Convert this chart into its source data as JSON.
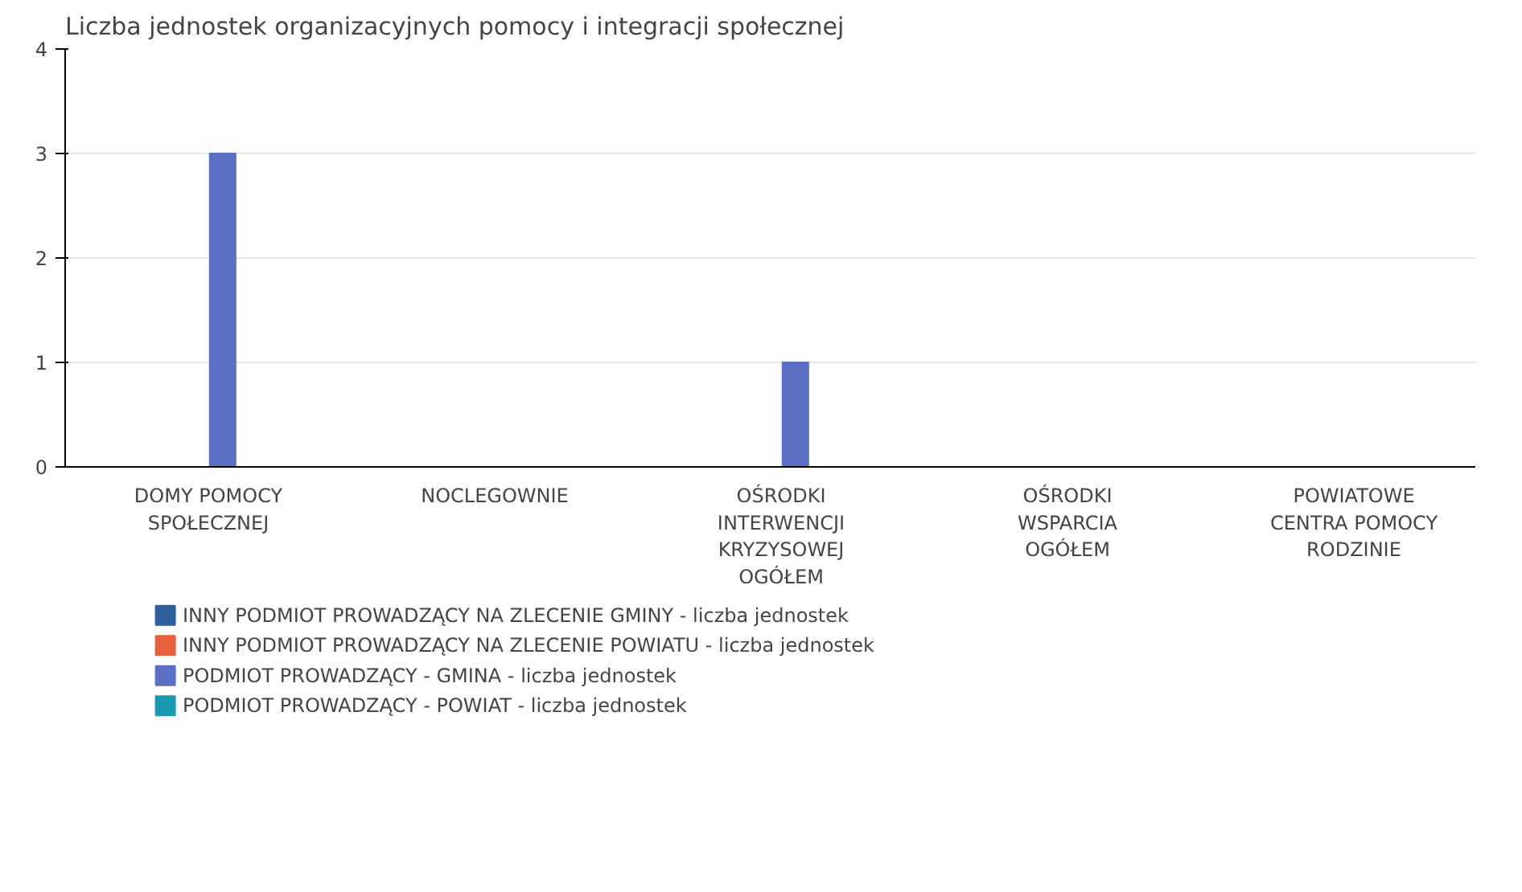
{
  "chart_data": {
    "type": "bar",
    "title": "Liczba jednostek organizacyjnych pomocy i integracji społecznej",
    "categories": [
      "DOMY POMOCY SPOŁECZNEJ",
      "NOCLEGOWNIE",
      "OŚRODKI INTERWENCJI KRYZYSOWEJ OGÓŁEM",
      "OŚRODKI WSPARCIA OGÓŁEM",
      "POWIATOWE CENTRA POMOCY RODZINIE"
    ],
    "series": [
      {
        "name": "INNY PODMIOT PROWADZĄCY NA ZLECENIE GMINY - liczba jednostek",
        "color": "#2c5f9e",
        "values": [
          0,
          0,
          0,
          0,
          0
        ]
      },
      {
        "name": "INNY PODMIOT PROWADZĄCY NA ZLECENIE POWIATU - liczba jednostek",
        "color": "#e8603c",
        "values": [
          0,
          0,
          0,
          0,
          0
        ]
      },
      {
        "name": "PODMIOT PROWADZĄCY - GMINA - liczba jednostek",
        "color": "#5b6fc4",
        "values": [
          3,
          0,
          1,
          0,
          0
        ]
      },
      {
        "name": "PODMIOT PROWADZĄCY - POWIAT - liczba jednostek",
        "color": "#1a9ab0",
        "values": [
          0,
          0,
          0,
          0,
          0
        ]
      }
    ],
    "ylim": [
      0,
      4
    ],
    "yticks": [
      0,
      1,
      2,
      3,
      4
    ],
    "grid": "y",
    "legend": "bottom"
  }
}
